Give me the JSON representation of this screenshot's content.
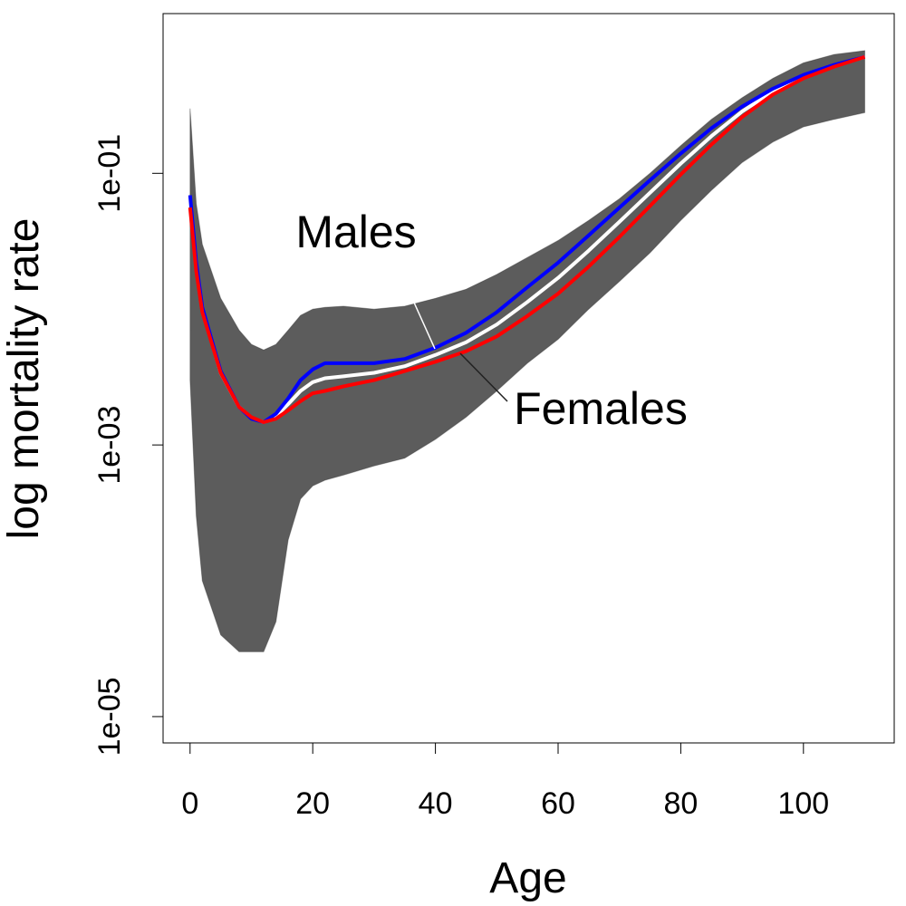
{
  "chart_data": {
    "type": "line",
    "xlabel": "Age",
    "ylabel": "log mortality rate",
    "log_y": true,
    "xlim": [
      -4.4,
      114.8
    ],
    "ylim": [
      6.4e-06,
      1.5
    ],
    "xticks": [
      0,
      20,
      40,
      60,
      80,
      100
    ],
    "yticks": [
      {
        "value": 0.1,
        "label": "1e-01"
      },
      {
        "value": 0.001,
        "label": "1e-03"
      },
      {
        "value": 1e-05,
        "label": "1e-05"
      }
    ],
    "x": [
      0,
      1,
      2,
      5,
      8,
      10,
      12,
      14,
      16,
      18,
      20,
      22,
      25,
      30,
      35,
      40,
      45,
      50,
      55,
      60,
      65,
      70,
      75,
      80,
      85,
      90,
      95,
      100,
      105,
      110
    ],
    "band": {
      "color": "#333333",
      "upper": [
        0.3,
        0.06,
        0.03,
        0.012,
        0.007,
        0.0055,
        0.005,
        0.0055,
        0.007,
        0.009,
        0.01,
        0.0103,
        0.0105,
        0.01,
        0.0105,
        0.012,
        0.014,
        0.018,
        0.024,
        0.032,
        0.045,
        0.065,
        0.1,
        0.16,
        0.25,
        0.36,
        0.5,
        0.65,
        0.75,
        0.8
      ],
      "lower": [
        0.003,
        0.0003,
        0.0001,
        4e-05,
        3e-05,
        3e-05,
        3e-05,
        5e-05,
        0.0002,
        0.0004,
        0.0005,
        0.00055,
        0.0006,
        0.0007,
        0.0008,
        0.0011,
        0.0016,
        0.0025,
        0.004,
        0.006,
        0.01,
        0.016,
        0.026,
        0.045,
        0.075,
        0.12,
        0.17,
        0.22,
        0.25,
        0.28
      ]
    },
    "series": [
      {
        "name": "Males",
        "color": "#0000ff",
        "values": [
          0.069,
          0.022,
          0.0103,
          0.0035,
          0.0019,
          0.00156,
          0.00147,
          0.0017,
          0.0022,
          0.003,
          0.0036,
          0.004,
          0.004,
          0.004,
          0.0043,
          0.0052,
          0.0067,
          0.0095,
          0.0145,
          0.022,
          0.035,
          0.056,
          0.089,
          0.14,
          0.215,
          0.31,
          0.42,
          0.53,
          0.63,
          0.72
        ]
      },
      {
        "name": "Females",
        "color": "#ff0000",
        "values": [
          0.056,
          0.019,
          0.0095,
          0.0034,
          0.0019,
          0.0016,
          0.00147,
          0.00156,
          0.0018,
          0.0021,
          0.0024,
          0.0025,
          0.0027,
          0.003,
          0.0035,
          0.0041,
          0.0049,
          0.0063,
          0.0089,
          0.013,
          0.0206,
          0.034,
          0.0575,
          0.098,
          0.163,
          0.26,
          0.38,
          0.5,
          0.61,
          0.72
        ]
      },
      {
        "color": "#ffffff",
        "values": [
          0.062,
          0.02,
          0.0099,
          0.0034,
          0.0019,
          0.00158,
          0.00147,
          0.00163,
          0.002,
          0.0025,
          0.0029,
          0.0031,
          0.0032,
          0.0034,
          0.0038,
          0.0046,
          0.0057,
          0.0077,
          0.0113,
          0.017,
          0.027,
          0.044,
          0.072,
          0.118,
          0.188,
          0.285,
          0.4,
          0.515,
          0.62,
          0.72
        ]
      }
    ]
  }
}
